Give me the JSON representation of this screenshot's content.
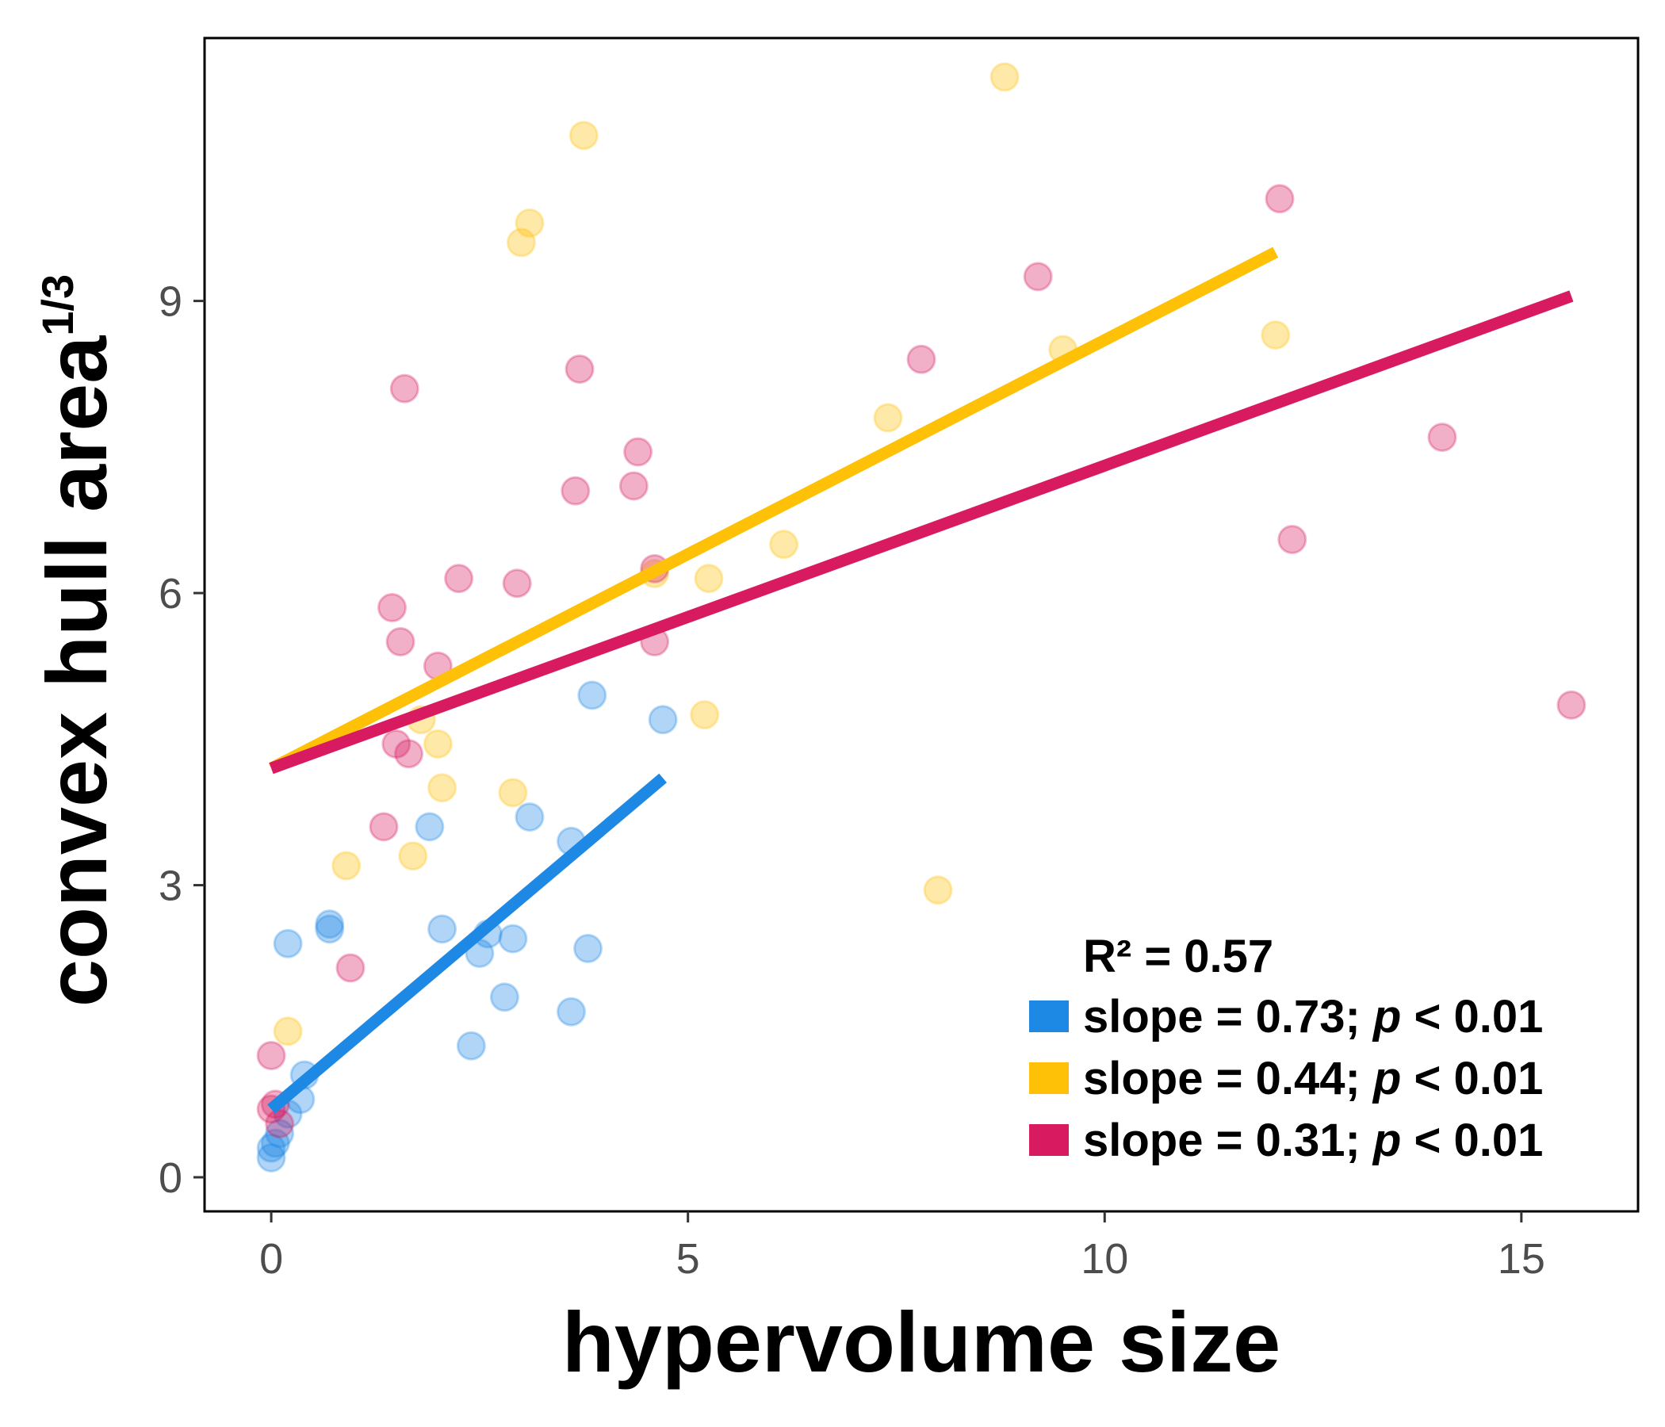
{
  "chart_data": {
    "type": "scatter",
    "xlabel": "hypervolume size",
    "ylabel": "convex hull area",
    "ylabel_superscript": "1/3",
    "xlim": [
      -0.8,
      16.4
    ],
    "ylim": [
      -0.35,
      11.7
    ],
    "x_ticks": [
      0,
      5,
      10,
      15
    ],
    "y_ticks": [
      0,
      3,
      6,
      9
    ],
    "x_tick_labels": [
      "0",
      "5",
      "10",
      "15"
    ],
    "y_tick_labels": [
      "0",
      "3",
      "6",
      "9"
    ],
    "grid": false,
    "legend_position": "bottom-right",
    "r2_label": "R² = 0.57",
    "series": [
      {
        "color": "#1e88e5",
        "slope_label": "slope = 0.73; ",
        "p_label": "p",
        "p_value": " < 0.01",
        "fit": {
          "x": [
            0.0,
            4.7
          ],
          "y": [
            0.7,
            4.1
          ]
        },
        "points": [
          [
            0.0,
            0.2
          ],
          [
            0.0,
            0.3
          ],
          [
            0.05,
            0.35
          ],
          [
            0.1,
            0.45
          ],
          [
            0.2,
            0.65
          ],
          [
            0.35,
            0.8
          ],
          [
            0.4,
            1.05
          ],
          [
            0.2,
            2.4
          ],
          [
            0.7,
            2.55
          ],
          [
            0.7,
            2.6
          ],
          [
            1.9,
            3.6
          ],
          [
            2.05,
            2.55
          ],
          [
            2.4,
            1.35
          ],
          [
            2.5,
            2.3
          ],
          [
            2.6,
            2.5
          ],
          [
            2.8,
            1.85
          ],
          [
            2.9,
            2.45
          ],
          [
            3.1,
            3.7
          ],
          [
            3.6,
            3.45
          ],
          [
            3.6,
            1.7
          ],
          [
            3.8,
            2.35
          ],
          [
            3.85,
            4.95
          ],
          [
            4.7,
            4.7
          ]
        ]
      },
      {
        "color": "#ffc107",
        "slope_label": "slope = 0.44; ",
        "p_label": "p",
        "p_value": " < 0.01",
        "fit": {
          "x": [
            0.0,
            12.05
          ],
          "y": [
            4.2,
            9.5
          ]
        },
        "points": [
          [
            0.2,
            1.5
          ],
          [
            0.9,
            3.2
          ],
          [
            1.7,
            3.3
          ],
          [
            1.8,
            4.7
          ],
          [
            2.0,
            4.45
          ],
          [
            2.05,
            4.0
          ],
          [
            2.9,
            3.95
          ],
          [
            3.0,
            9.6
          ],
          [
            3.1,
            9.8
          ],
          [
            3.75,
            10.7
          ],
          [
            4.6,
            6.2
          ],
          [
            5.2,
            4.75
          ],
          [
            5.25,
            6.15
          ],
          [
            6.15,
            6.5
          ],
          [
            7.4,
            7.8
          ],
          [
            8.0,
            2.95
          ],
          [
            8.8,
            11.3
          ],
          [
            9.5,
            8.5
          ],
          [
            12.05,
            8.65
          ]
        ]
      },
      {
        "color": "#d81b60",
        "slope_label": "slope = 0.31; ",
        "p_label": "p",
        "p_value": " < 0.01",
        "fit": {
          "x": [
            0.0,
            15.6
          ],
          "y": [
            4.2,
            9.05
          ]
        },
        "points": [
          [
            0.0,
            1.25
          ],
          [
            0.0,
            0.7
          ],
          [
            0.05,
            0.75
          ],
          [
            0.1,
            0.55
          ],
          [
            0.95,
            2.15
          ],
          [
            1.35,
            3.6
          ],
          [
            1.45,
            5.85
          ],
          [
            1.5,
            4.45
          ],
          [
            1.55,
            5.5
          ],
          [
            1.6,
            8.1
          ],
          [
            1.65,
            4.35
          ],
          [
            2.0,
            5.25
          ],
          [
            2.25,
            6.15
          ],
          [
            2.95,
            6.1
          ],
          [
            3.65,
            7.05
          ],
          [
            3.7,
            8.3
          ],
          [
            4.35,
            7.1
          ],
          [
            4.4,
            7.45
          ],
          [
            4.6,
            6.25
          ],
          [
            4.6,
            5.5
          ],
          [
            7.8,
            8.4
          ],
          [
            9.2,
            9.25
          ],
          [
            12.1,
            10.05
          ],
          [
            12.25,
            6.55
          ],
          [
            14.05,
            7.6
          ],
          [
            15.6,
            4.85
          ]
        ]
      }
    ]
  }
}
